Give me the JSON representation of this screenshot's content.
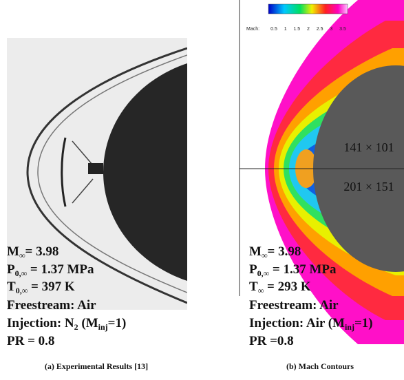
{
  "colorbar": {
    "label": "Mach:",
    "ticks": [
      0.5,
      1,
      1.5,
      2,
      2.5,
      3,
      3.5
    ]
  },
  "grid_labels": [
    "141 × 101",
    "201 × 151"
  ],
  "panels": [
    {
      "caption": "(a) Experimental Results [13]",
      "lines": [
        [
          {
            "t": "M"
          },
          {
            "sub": "∞"
          },
          {
            "t": "= 3.98"
          }
        ],
        [
          {
            "t": "P"
          },
          {
            "sub": "0,∞"
          },
          {
            "t": " = 1.37 MPa"
          }
        ],
        [
          {
            "t": "T"
          },
          {
            "sub": "0,∞"
          },
          {
            "t": " = 397 K"
          }
        ],
        [
          {
            "t": "Freestream: Air"
          }
        ],
        [
          {
            "t": "Injection:  N"
          },
          {
            "sub": "2"
          },
          {
            "t": " (M"
          },
          {
            "sub": "inj"
          },
          {
            "t": "=1)"
          }
        ],
        [
          {
            "t": "PR = 0.8"
          }
        ]
      ]
    },
    {
      "caption": "(b) Mach Contours",
      "lines": [
        [
          {
            "t": "M"
          },
          {
            "sub": "∞"
          },
          {
            "t": "= 3.98"
          }
        ],
        [
          {
            "t": "P"
          },
          {
            "sub": "0,∞"
          },
          {
            "t": " = 1.37 MPa"
          }
        ],
        [
          {
            "t": "T"
          },
          {
            "sub": "∞"
          },
          {
            "t": " = 293 K"
          }
        ],
        [
          {
            "t": "Freestream: Air"
          }
        ],
        [
          {
            "t": "Injection: Air (M"
          },
          {
            "sub": "inj"
          },
          {
            "t": "=1)"
          }
        ],
        [
          {
            "t": "PR =0.8"
          }
        ]
      ]
    }
  ]
}
